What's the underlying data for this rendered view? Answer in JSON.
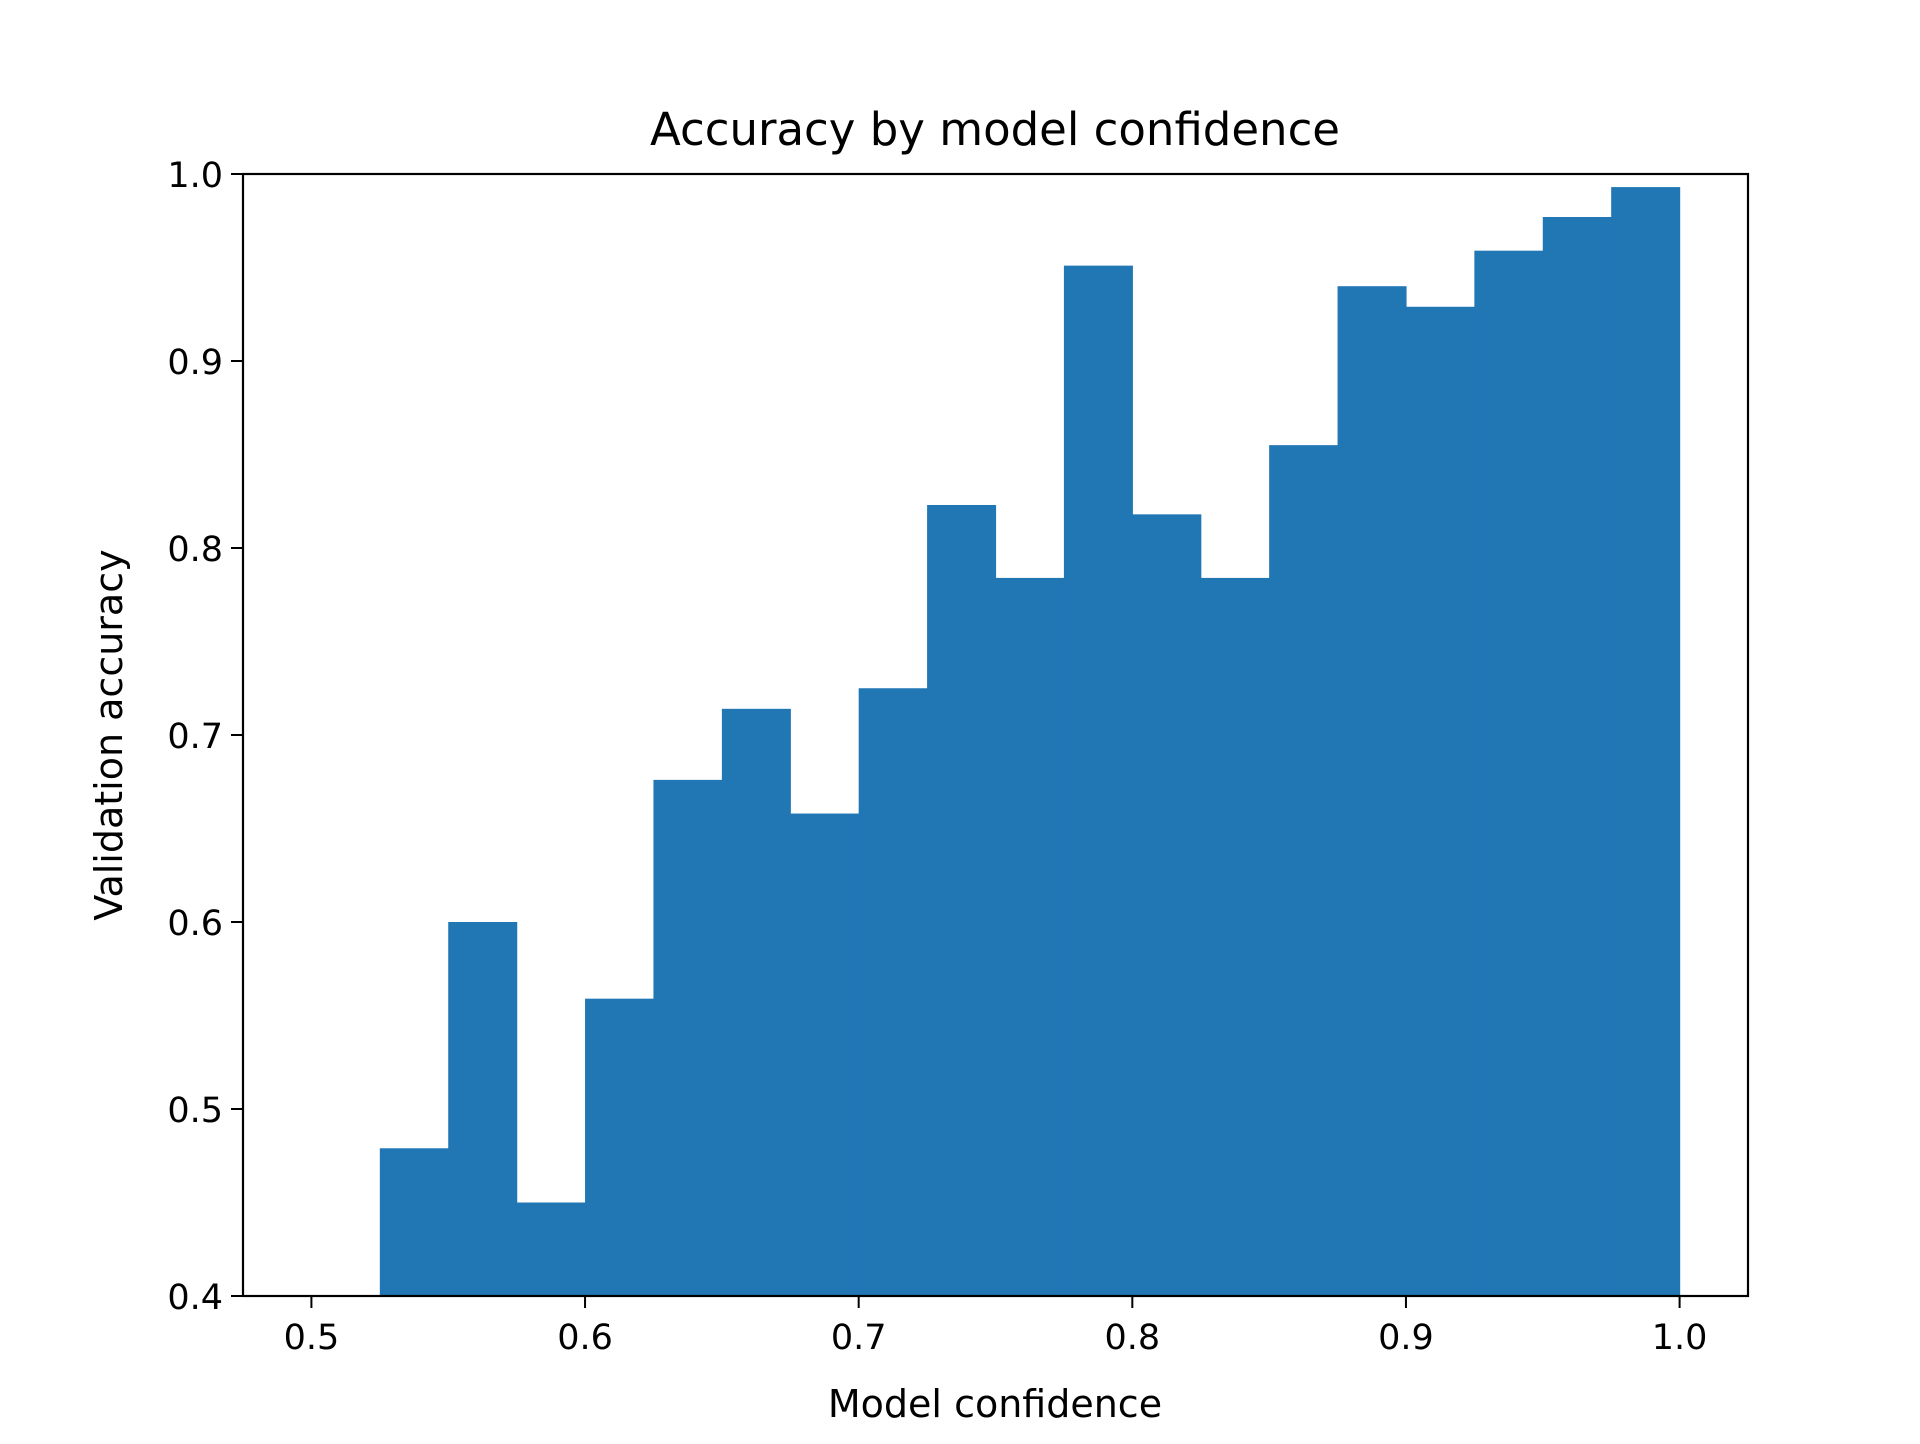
{
  "chart_data": {
    "type": "bar",
    "title": "Accuracy by model confidence",
    "xlabel": "Model confidence",
    "ylabel": "Validation accuracy",
    "xlim": [
      0.475,
      1.025
    ],
    "ylim": [
      0.4,
      1.0
    ],
    "bin_width": 0.025,
    "bins": [
      {
        "x0": 0.525,
        "x1": 0.55,
        "value": 0.479
      },
      {
        "x0": 0.55,
        "x1": 0.575,
        "value": 0.6
      },
      {
        "x0": 0.575,
        "x1": 0.6,
        "value": 0.45
      },
      {
        "x0": 0.6,
        "x1": 0.625,
        "value": 0.559
      },
      {
        "x0": 0.625,
        "x1": 0.65,
        "value": 0.676
      },
      {
        "x0": 0.65,
        "x1": 0.675,
        "value": 0.714
      },
      {
        "x0": 0.675,
        "x1": 0.7,
        "value": 0.658
      },
      {
        "x0": 0.7,
        "x1": 0.725,
        "value": 0.725
      },
      {
        "x0": 0.725,
        "x1": 0.75,
        "value": 0.823
      },
      {
        "x0": 0.75,
        "x1": 0.775,
        "value": 0.784
      },
      {
        "x0": 0.775,
        "x1": 0.8,
        "value": 0.951
      },
      {
        "x0": 0.8,
        "x1": 0.825,
        "value": 0.818
      },
      {
        "x0": 0.825,
        "x1": 0.85,
        "value": 0.784
      },
      {
        "x0": 0.85,
        "x1": 0.875,
        "value": 0.855
      },
      {
        "x0": 0.875,
        "x1": 0.9,
        "value": 0.94
      },
      {
        "x0": 0.9,
        "x1": 0.925,
        "value": 0.929
      },
      {
        "x0": 0.925,
        "x1": 0.95,
        "value": 0.959
      },
      {
        "x0": 0.95,
        "x1": 0.975,
        "value": 0.977
      },
      {
        "x0": 0.975,
        "x1": 1.0,
        "value": 0.993
      }
    ],
    "xticks": [
      {
        "value": 0.5,
        "label": "0.5"
      },
      {
        "value": 0.6,
        "label": "0.6"
      },
      {
        "value": 0.7,
        "label": "0.7"
      },
      {
        "value": 0.8,
        "label": "0.8"
      },
      {
        "value": 0.9,
        "label": "0.9"
      },
      {
        "value": 1.0,
        "label": "1.0"
      }
    ],
    "yticks": [
      {
        "value": 0.4,
        "label": "0.4"
      },
      {
        "value": 0.5,
        "label": "0.5"
      },
      {
        "value": 0.6,
        "label": "0.6"
      },
      {
        "value": 0.7,
        "label": "0.7"
      },
      {
        "value": 0.8,
        "label": "0.8"
      },
      {
        "value": 0.9,
        "label": "0.9"
      },
      {
        "value": 1.0,
        "label": "1.0"
      }
    ],
    "grid": false,
    "legend": "none",
    "bar_color": "#2077b4"
  }
}
